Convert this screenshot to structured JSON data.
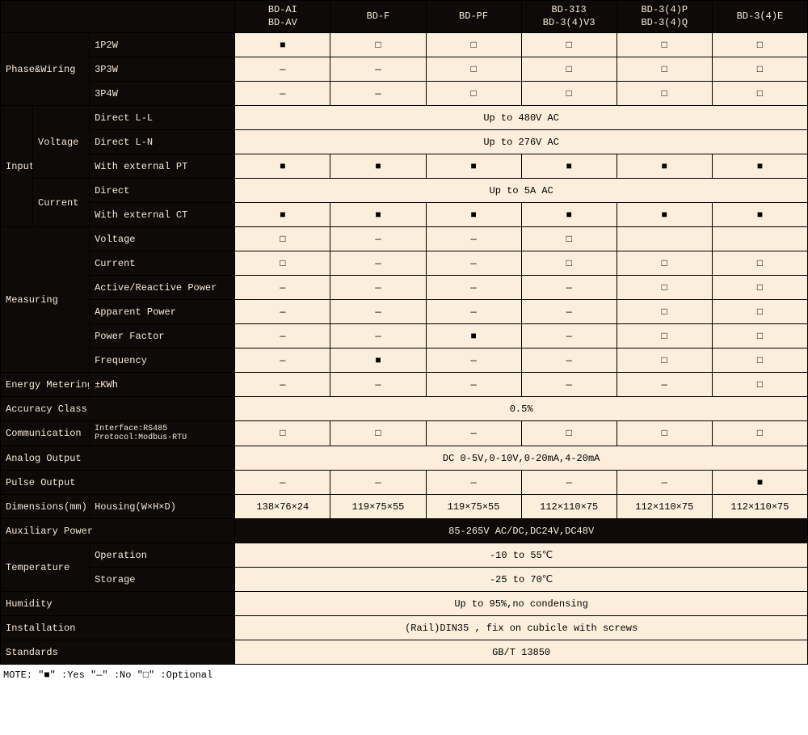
{
  "columns": [
    "BD-AI\nBD-AV",
    "BD-F",
    "BD-PF",
    "BD-3I3\nBD-3(4)V3",
    "BD-3(4)P\nBD-3(4)Q",
    "BD-3(4)E"
  ],
  "symbols": {
    "yes": "■",
    "no": "—",
    "opt": "□"
  },
  "phaseWiring": {
    "label": "Phase&Wiring",
    "rows": [
      {
        "label": "1P2W",
        "cells": [
          "■",
          "□",
          "□",
          "□",
          "□",
          "□"
        ]
      },
      {
        "label": "3P3W",
        "cells": [
          "—",
          "—",
          "□",
          "□",
          "□",
          "□"
        ]
      },
      {
        "label": "3P4W",
        "cells": [
          "—",
          "—",
          "□",
          "□",
          "□",
          "□"
        ]
      }
    ]
  },
  "input": {
    "label": "Input",
    "voltage": {
      "label": "Voltage",
      "rows": [
        {
          "label": "Direct L-L",
          "span": "Up to 480V AC"
        },
        {
          "label": "Direct L-N",
          "span": "Up to 276V AC"
        },
        {
          "label": "With external PT",
          "cells": [
            "■",
            "■",
            "■",
            "■",
            "■",
            "■"
          ]
        }
      ]
    },
    "current": {
      "label": "Current",
      "rows": [
        {
          "label": "Direct",
          "span": "Up to 5A AC"
        },
        {
          "label": "With external CT",
          "cells": [
            "■",
            "■",
            "■",
            "■",
            "■",
            "■"
          ]
        }
      ]
    }
  },
  "measuring": {
    "label": "Measuring",
    "rows": [
      {
        "label": "Voltage",
        "cells": [
          "□",
          "—",
          "—",
          "□",
          "",
          ""
        ]
      },
      {
        "label": "Current",
        "cells": [
          "□",
          "—",
          "—",
          "□",
          "□",
          "□"
        ]
      },
      {
        "label": "Active/Reactive Power",
        "cells": [
          "—",
          "—",
          "—",
          "—",
          "□",
          "□"
        ]
      },
      {
        "label": "Apparent Power",
        "cells": [
          "—",
          "—",
          "—",
          "—",
          "□",
          "□"
        ]
      },
      {
        "label": "Power Factor",
        "cells": [
          "—",
          "—",
          "■",
          "—",
          "□",
          "□"
        ]
      },
      {
        "label": "Frequency",
        "cells": [
          "—",
          "■",
          "—",
          "—",
          "□",
          "□"
        ]
      }
    ]
  },
  "energyMetering": {
    "label": "Energy Metering",
    "sublabel": "±KWh",
    "cells": [
      "—",
      "—",
      "—",
      "—",
      "—",
      "□"
    ]
  },
  "accuracy": {
    "label": "Accuracy Class",
    "span": "0.5%"
  },
  "communication": {
    "label": "Communication",
    "sublabel": "Interface:RS485\nProtocol:Modbus-RTU",
    "cells": [
      "□",
      "□",
      "—",
      "□",
      "□",
      "□"
    ]
  },
  "analogOutput": {
    "label": "Analog Output",
    "span": "DC 0-5V,0-10V,0-20mA,4-20mA"
  },
  "pulseOutput": {
    "label": "Pulse Output",
    "cells": [
      "—",
      "—",
      "—",
      "—",
      "—",
      "■"
    ]
  },
  "dimensions": {
    "label": "Dimensions(mm)",
    "sublabel": "Housing(W×H×D)",
    "cells": [
      "138×76×24",
      "119×75×55",
      "119×75×55",
      "112×110×75",
      "112×110×75",
      "112×110×75"
    ]
  },
  "auxPower": {
    "label": "Auxiliary Power",
    "span": "85-265V AC/DC,DC24V,DC48V",
    "spanStyle": "dark"
  },
  "temperature": {
    "label": "Temperature",
    "rows": [
      {
        "label": "Operation",
        "span": "-10 to 55℃"
      },
      {
        "label": "Storage",
        "span": "-25 to 70℃"
      }
    ]
  },
  "humidity": {
    "label": "Humidity",
    "span": "Up to 95%,no condensing"
  },
  "installation": {
    "label": "Installation",
    "span": "(Rail)DIN35 , fix on cubicle with screws"
  },
  "standards": {
    "label": "Standards",
    "span": "GB/T 13850"
  },
  "note": "MOTE: \"■\" :Yes   \"—\" :No   \"□\" :Optional"
}
